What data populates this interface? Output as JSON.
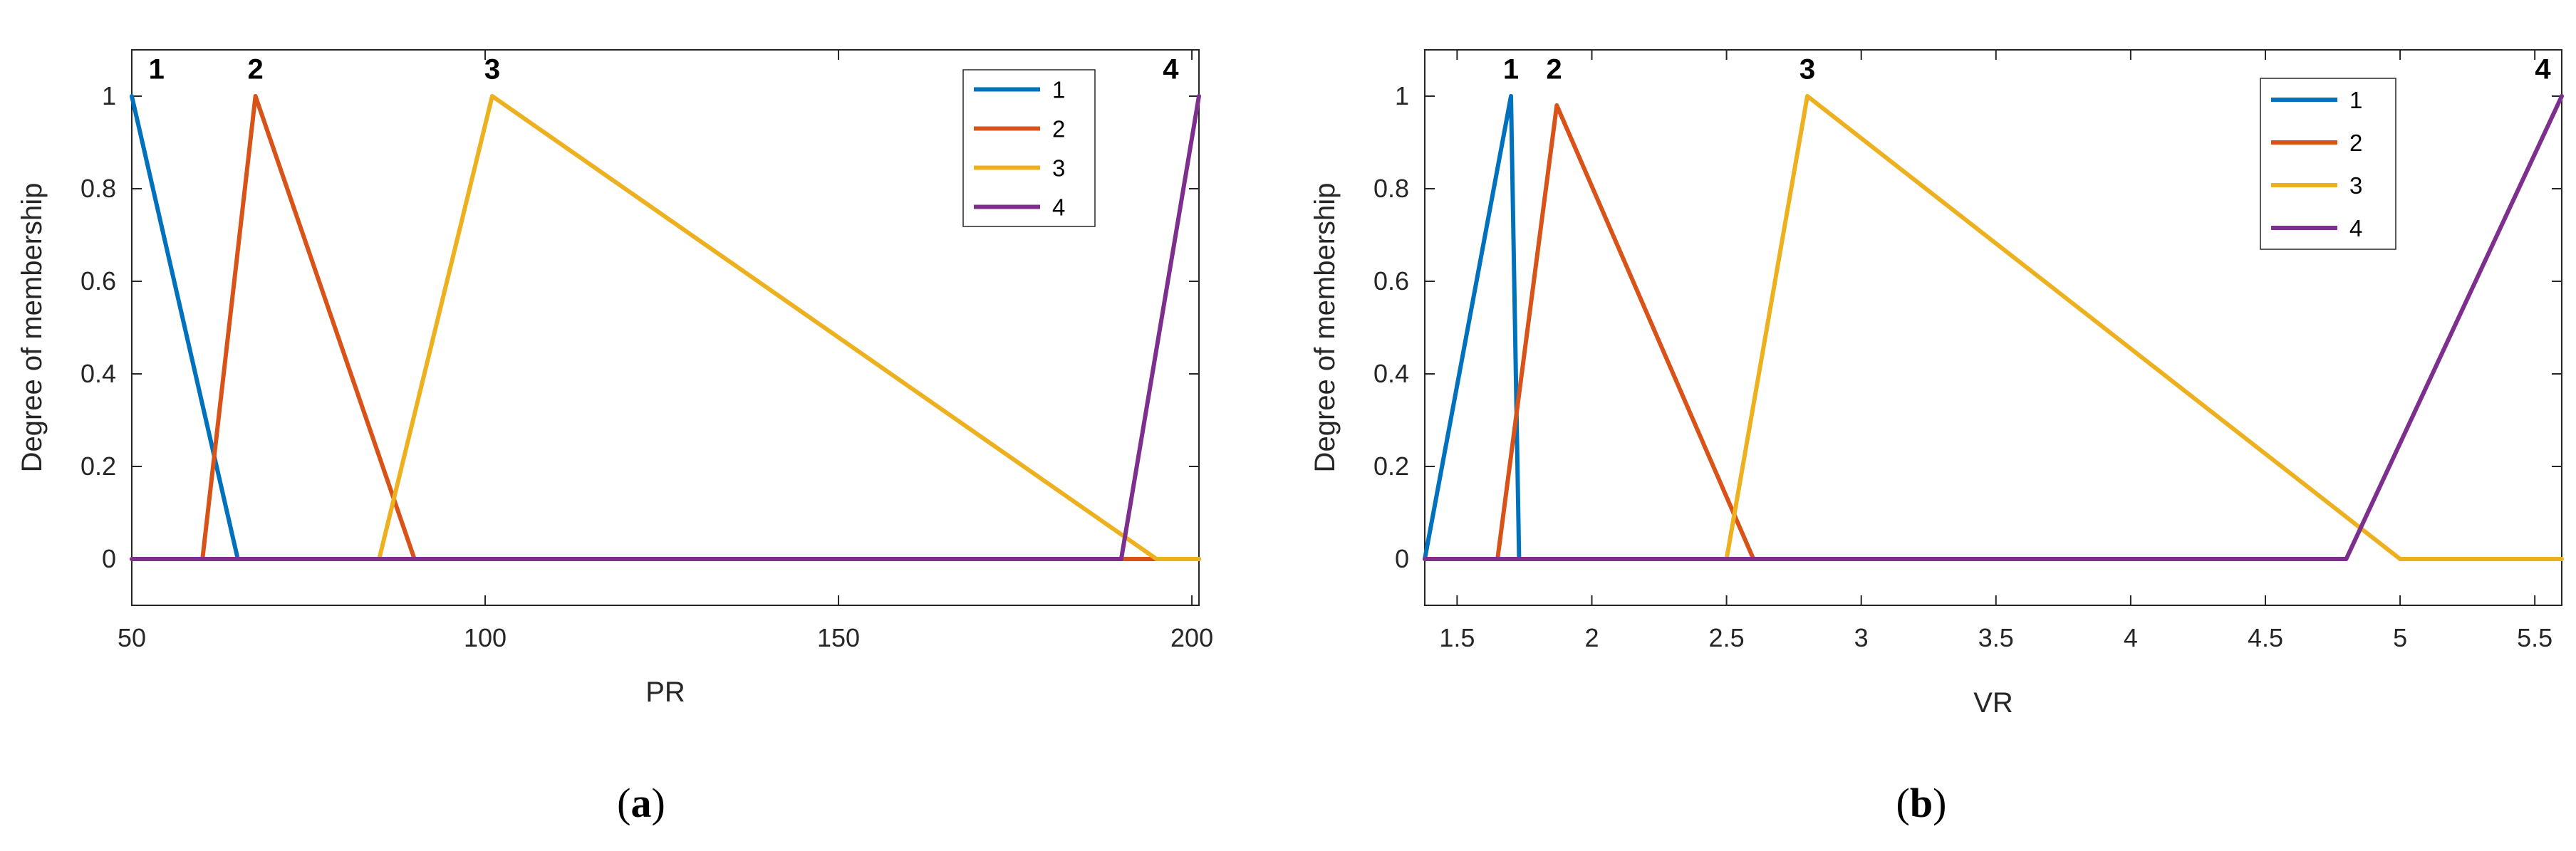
{
  "colors": {
    "series": [
      "#0072BD",
      "#D95319",
      "#EDB120",
      "#7E2F8E"
    ],
    "axis": "#262626",
    "frame": "#262626"
  },
  "chart_data": [
    {
      "type": "line",
      "panel_label": "a",
      "xlabel": "PR",
      "ylabel": "Degree of membership",
      "xlim": [
        50,
        201
      ],
      "ylim": [
        -0.1,
        1.1
      ],
      "xticks": [
        50,
        100,
        150,
        200
      ],
      "yticks": [
        0,
        0.2,
        0.4,
        0.6,
        0.8,
        1
      ],
      "tick_labels_x": [
        "50",
        "100",
        "150",
        "200"
      ],
      "tick_labels_y": [
        "0",
        "0.2",
        "0.4",
        "0.6",
        "0.8",
        "1"
      ],
      "legend": {
        "position": "top-right",
        "entries": [
          "1",
          "2",
          "3",
          "4"
        ]
      },
      "series": [
        {
          "name": "1",
          "x": [
            50,
            65,
            201
          ],
          "y": [
            1,
            0,
            0
          ]
        },
        {
          "name": "2",
          "x": [
            50,
            60,
            67.5,
            90,
            201
          ],
          "y": [
            0,
            0,
            1,
            0,
            0
          ]
        },
        {
          "name": "3",
          "x": [
            50,
            85,
            101,
            195,
            201
          ],
          "y": [
            0,
            0,
            1,
            0,
            0
          ]
        },
        {
          "name": "4",
          "x": [
            50,
            190,
            201
          ],
          "y": [
            0,
            0,
            1
          ]
        }
      ],
      "annotations": [
        {
          "text": "1",
          "x": 53.5,
          "y": 1.05
        },
        {
          "text": "2",
          "x": 67.5,
          "y": 1.05
        },
        {
          "text": "3",
          "x": 101,
          "y": 1.05
        },
        {
          "text": "4",
          "x": 197,
          "y": 1.05
        }
      ]
    },
    {
      "type": "line",
      "panel_label": "b",
      "xlabel": "VR",
      "ylabel": "Degree of membership",
      "xlim": [
        1.38,
        5.6
      ],
      "ylim": [
        -0.1,
        1.1
      ],
      "xticks": [
        1.5,
        2,
        2.5,
        3,
        3.5,
        4,
        4.5,
        5,
        5.5
      ],
      "yticks": [
        0,
        0.2,
        0.4,
        0.6,
        0.8,
        1
      ],
      "tick_labels_x": [
        "1.5",
        "2",
        "2.5",
        "3",
        "3.5",
        "4",
        "4.5",
        "5",
        "5.5"
      ],
      "tick_labels_y": [
        "0",
        "0.2",
        "0.4",
        "0.6",
        "0.8",
        "1"
      ],
      "legend": {
        "position": "top-right",
        "entries": [
          "1",
          "2",
          "3",
          "4"
        ]
      },
      "series": [
        {
          "name": "1",
          "x": [
            1.38,
            1.7,
            1.73
          ],
          "y": [
            0,
            1,
            0
          ]
        },
        {
          "name": "2",
          "x": [
            1.65,
            1.87,
            2.6
          ],
          "y": [
            0,
            0.98,
            0
          ]
        },
        {
          "name": "3",
          "x": [
            2.5,
            2.8,
            5.0,
            5.6
          ],
          "y": [
            0,
            1,
            0,
            0
          ]
        },
        {
          "name": "4",
          "x": [
            1.38,
            4.8,
            5.6
          ],
          "y": [
            0,
            0,
            1
          ]
        }
      ],
      "annotations": [
        {
          "text": "1",
          "x": 1.7,
          "y": 1.05
        },
        {
          "text": "2",
          "x": 1.86,
          "y": 1.05
        },
        {
          "text": "3",
          "x": 2.8,
          "y": 1.05
        },
        {
          "text": "4",
          "x": 5.53,
          "y": 1.05
        }
      ]
    }
  ]
}
